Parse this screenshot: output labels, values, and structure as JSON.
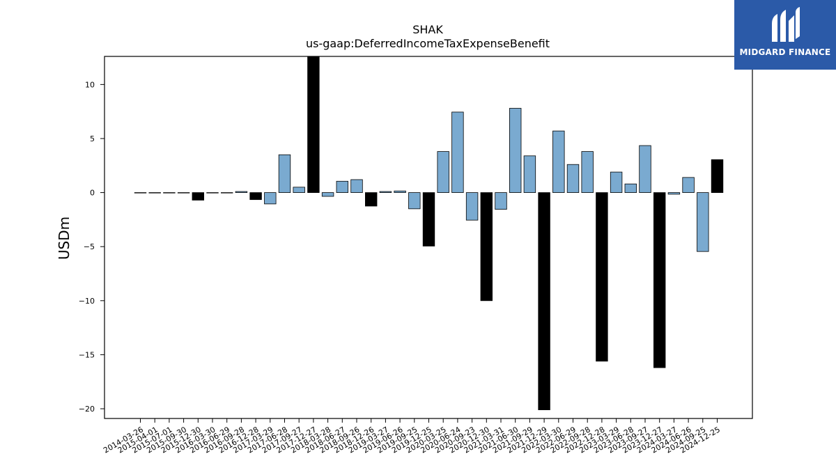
{
  "chart_data": {
    "type": "bar",
    "title": "SHAK",
    "subtitle": "us-gaap:DeferredIncomeTaxExpenseBenefit",
    "xlabel": "",
    "ylabel": "USDm",
    "ylim": [
      -20.9,
      12.6
    ],
    "yticks": [
      10,
      5,
      0,
      -5,
      -10,
      -15,
      -20
    ],
    "grid": false,
    "categories": [
      "2014-03-26",
      "2015-04-01",
      "2015-07-01",
      "2015-09-30",
      "2015-12-30",
      "2016-03-30",
      "2016-06-29",
      "2016-09-28",
      "2016-12-28",
      "2017-03-29",
      "2017-06-28",
      "2017-09-27",
      "2017-12-27",
      "2018-03-28",
      "2018-06-27",
      "2018-09-26",
      "2018-12-26",
      "2019-03-27",
      "2019-06-26",
      "2019-09-25",
      "2019-12-25",
      "2020-03-25",
      "2020-06-24",
      "2020-09-23",
      "2020-12-30",
      "2021-03-31",
      "2021-06-30",
      "2021-09-29",
      "2021-12-29",
      "2022-03-30",
      "2022-06-29",
      "2022-09-28",
      "2022-12-28",
      "2023-03-29",
      "2023-06-28",
      "2023-09-27",
      "2023-12-27",
      "2024-03-27",
      "2024-06-26",
      "2024-09-25",
      "2024-12-25"
    ],
    "values": [
      0.0,
      0.0,
      0.0,
      0.0,
      -0.7,
      0.0,
      0.0,
      0.1,
      -0.65,
      -1.05,
      3.5,
      0.5,
      12.6,
      -0.35,
      1.05,
      1.2,
      -1.25,
      0.1,
      0.15,
      -1.5,
      -4.95,
      3.8,
      7.45,
      -2.55,
      -10.0,
      -1.55,
      7.8,
      3.4,
      -20.1,
      5.7,
      2.6,
      3.8,
      -15.6,
      1.9,
      0.8,
      4.35,
      -16.2,
      -0.15,
      1.4,
      -5.45,
      3.05
    ],
    "highlight": [
      false,
      false,
      false,
      false,
      true,
      false,
      false,
      false,
      true,
      false,
      false,
      false,
      true,
      false,
      false,
      false,
      true,
      false,
      false,
      false,
      true,
      false,
      false,
      false,
      true,
      false,
      false,
      false,
      true,
      false,
      false,
      false,
      true,
      false,
      false,
      false,
      true,
      false,
      false,
      false,
      true
    ],
    "colors": {
      "bar": "#7aaad0",
      "highlight": "#000000",
      "edge": "#000000"
    }
  },
  "logo": {
    "text": "MIDGARD FINANCE",
    "background": "#2b5aa8",
    "icon": "midgard-logo-icon"
  }
}
